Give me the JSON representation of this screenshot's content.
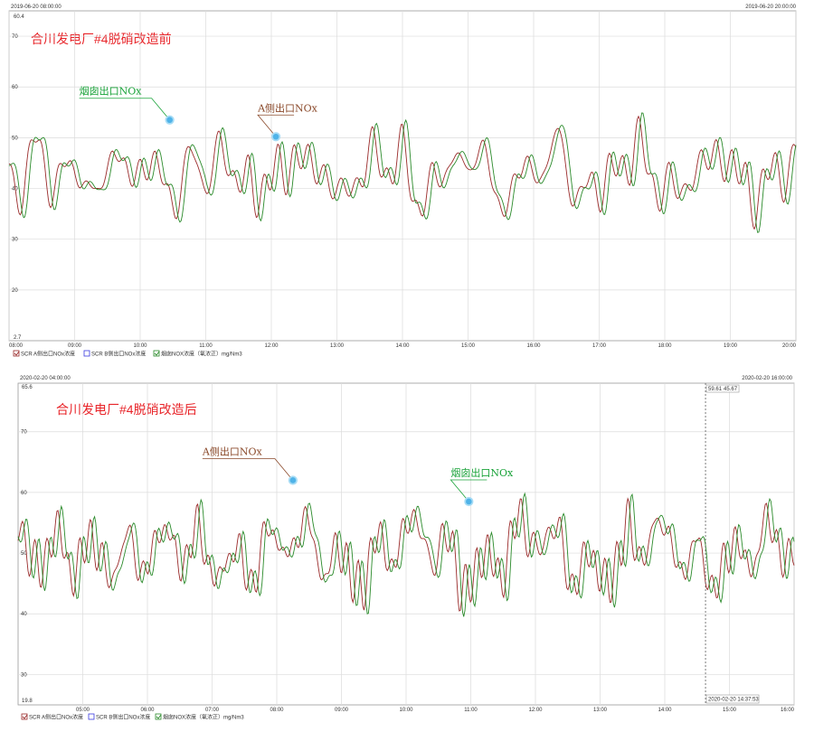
{
  "chart_data": [
    {
      "type": "line",
      "title": "合川发电厂#4脱硝改造前",
      "start_label": "2019-06-20 08:00:00",
      "end_label": "2019-06-20 20:00:00",
      "ymax_label": "60.4",
      "ymin_label": "2.7",
      "ylim": [
        10,
        75
      ],
      "yticks": [
        20,
        30,
        40,
        50,
        60,
        70
      ],
      "xlim": [
        8,
        20
      ],
      "xticks": [
        "08:00",
        "09:00",
        "10:00",
        "11:00",
        "12:00",
        "13:00",
        "14:00",
        "15:00",
        "16:00",
        "17:00",
        "18:00",
        "19:00",
        "20:00"
      ],
      "grid": true,
      "legend_position": "bottom-left",
      "legend": [
        "SCR A侧出口NOx浓度",
        "SCR B侧出口NOx浓度",
        "烟囱NOX浓度（氧浓正）mg/Nm3"
      ],
      "annotations": [
        {
          "text": "烟囱出口NOx",
          "x": 10.45,
          "y": 53.5,
          "color": "#1aa33a"
        },
        {
          "text": "A侧出口NOx",
          "x": 12.07,
          "y": 50.2,
          "color": "#8b4a2b"
        }
      ],
      "series": [
        {
          "name": "SCR A侧出口NOx浓度",
          "color": "#9a2a2a",
          "mean": 43,
          "amp": 7,
          "seed": 11,
          "lag": 0
        },
        {
          "name": "烟囱NOX浓度（氧浓正）mg/Nm3",
          "color": "#2a8a2a",
          "mean": 43,
          "amp": 7.5,
          "seed": 11,
          "lag": 0.06
        }
      ]
    },
    {
      "type": "line",
      "title": "合川发电厂#4脱硝改造后",
      "start_label": "2020-02-20 04:00:00",
      "end_label": "2020-02-20 16:00:00",
      "ymax_label": "65.6",
      "ymin_label": "19.8",
      "ylim": [
        25,
        78
      ],
      "yticks": [
        30,
        40,
        50,
        60,
        70
      ],
      "xlim": [
        4,
        16
      ],
      "xticks": [
        "05:00",
        "06:00",
        "07:00",
        "08:00",
        "09:00",
        "10:00",
        "11:00",
        "12:00",
        "13:00",
        "14:00",
        "15:00",
        "16:00"
      ],
      "grid": true,
      "legend_position": "bottom-left",
      "legend": [
        "SCR A侧出口NOx浓度",
        "SCR B侧出口NOx浓度",
        "烟囱NOX浓度（氧浓正）mg/Nm3"
      ],
      "cursor_values": [
        "59.61",
        "45.67"
      ],
      "cursor_time": "2020-02-20 14:37:53",
      "cursor_x": 14.63,
      "annotations": [
        {
          "text": "A侧出口NOx",
          "x": 8.25,
          "y": 62,
          "color": "#8b4a2b"
        },
        {
          "text": "烟囱出口NOx",
          "x": 10.97,
          "y": 58.5,
          "color": "#1aa33a"
        }
      ],
      "series": [
        {
          "name": "SCR A侧出口NOx浓度",
          "color": "#9a2a2a",
          "mean": 50,
          "amp": 6,
          "seed": 29,
          "lag": 0
        },
        {
          "name": "烟囱NOX浓度（氧浓正）mg/Nm3",
          "color": "#2a8a2a",
          "mean": 50,
          "amp": 6.5,
          "seed": 29,
          "lag": 0.06
        }
      ]
    }
  ]
}
